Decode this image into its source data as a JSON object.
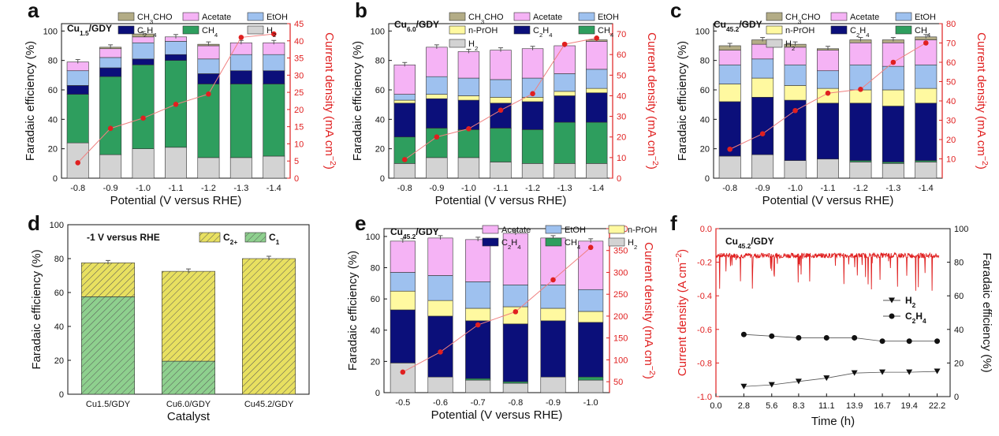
{
  "colors": {
    "H2": "#d3d3d3",
    "CH4": "#2e9e5e",
    "C2H4": "#0b0f7a",
    "EtOH": "#9ec1ef",
    "Acetate": "#f5b3f5",
    "CH3CHO": "#b3ac86",
    "nPrOH": "#fff9a0",
    "current": "#e02020",
    "C2plus": "#e8e060",
    "C1": "#8ed08e"
  },
  "chart_data": [
    {
      "panel": "a",
      "type": "bar",
      "stacked": true,
      "title": "Cu1.5/GDY",
      "xlabel": "Potential (V versus RHE)",
      "ylabel": "Faradaic efficiency (%)",
      "y2label": "Current density (mA cm−2)",
      "ylim": [
        0,
        105
      ],
      "y2lim": [
        0,
        45
      ],
      "yticks": [
        "0",
        "20",
        "40",
        "60",
        "80",
        "100"
      ],
      "y2ticks": [
        "0",
        "5",
        "10",
        "15",
        "20",
        "25",
        "30",
        "35",
        "40",
        "45"
      ],
      "categories": [
        "-0.8",
        "-0.9",
        "-1.0",
        "-1.1",
        "-1.2",
        "-1.3",
        "-1.4"
      ],
      "legend": [
        {
          "key": "CH3CHO",
          "label": "CH3CHO"
        },
        {
          "key": "Acetate",
          "label": "Acetate"
        },
        {
          "key": "EtOH",
          "label": "EtOH"
        },
        {
          "key": "C2H4",
          "label": "C2H4"
        },
        {
          "key": "CH4",
          "label": "CH4"
        },
        {
          "key": "H2",
          "label": "H2"
        }
      ],
      "series": [
        {
          "name": "H2",
          "values": [
            24,
            16,
            20,
            21,
            14,
            14,
            15
          ]
        },
        {
          "name": "CH4",
          "values": [
            33,
            53,
            57,
            59,
            50,
            50,
            49
          ]
        },
        {
          "name": "C2H4",
          "values": [
            6,
            6,
            4,
            4,
            7,
            9,
            9
          ]
        },
        {
          "name": "EtOH",
          "values": [
            10,
            7,
            11,
            9,
            10,
            11,
            11
          ]
        },
        {
          "name": "Acetate",
          "values": [
            6,
            6,
            4,
            3,
            9,
            8,
            8
          ]
        },
        {
          "name": "CH3CHO",
          "values": [
            0,
            1,
            2,
            0,
            1,
            0,
            0
          ]
        }
      ],
      "current_density": [
        4.5,
        14.5,
        17.5,
        21.5,
        24.5,
        41,
        42
      ]
    },
    {
      "panel": "b",
      "type": "bar",
      "stacked": true,
      "title": "Cu6.0/GDY",
      "xlabel": "Potential (V versus RHE)",
      "ylabel": "Faradaic efficiency (%)",
      "y2label": "Current density (mA cm−2)",
      "ylim": [
        0,
        105
      ],
      "y2lim": [
        0,
        75
      ],
      "yticks": [
        "0",
        "20",
        "40",
        "60",
        "80",
        "100"
      ],
      "y2ticks": [
        "0",
        "10",
        "20",
        "30",
        "40",
        "50",
        "60",
        "70"
      ],
      "categories": [
        "-0.8",
        "-0.9",
        "-1.0",
        "-1.1",
        "-1.2",
        "-1.3",
        "-1.4"
      ],
      "legend": [
        {
          "key": "CH3CHO",
          "label": "CH3CHO"
        },
        {
          "key": "Acetate",
          "label": "Acetate"
        },
        {
          "key": "EtOH",
          "label": "EtOH"
        },
        {
          "key": "nPrOH",
          "label": "n-PrOH"
        },
        {
          "key": "C2H4",
          "label": "C2H4"
        },
        {
          "key": "CH4",
          "label": "CH4"
        },
        {
          "key": "H2",
          "label": "H2"
        }
      ],
      "series": [
        {
          "name": "H2",
          "values": [
            10,
            14,
            14,
            11,
            10,
            10,
            10
          ]
        },
        {
          "name": "CH4",
          "values": [
            18,
            20,
            19,
            23,
            23,
            28,
            28
          ]
        },
        {
          "name": "C2H4",
          "values": [
            23,
            20,
            20,
            17,
            19,
            18,
            20
          ]
        },
        {
          "name": "nPrOH",
          "values": [
            2,
            3,
            3,
            4,
            3,
            3,
            3
          ]
        },
        {
          "name": "EtOH",
          "values": [
            4,
            12,
            12,
            12,
            13,
            12,
            13
          ]
        },
        {
          "name": "Acetate",
          "values": [
            20,
            20,
            18,
            20,
            20,
            19,
            19
          ]
        },
        {
          "name": "CH3CHO",
          "values": [
            0,
            0,
            0,
            0,
            0,
            0,
            1
          ]
        }
      ],
      "current_density": [
        9,
        20,
        24,
        33,
        41,
        65,
        68
      ]
    },
    {
      "panel": "c",
      "type": "bar",
      "stacked": true,
      "title": "Cu45.2/GDY",
      "xlabel": "Potential (V versus RHE)",
      "ylabel": "Faradaic efficiency (%)",
      "y2label": "Current density (mA cm−2)",
      "ylim": [
        0,
        105
      ],
      "y2lim": [
        0,
        80
      ],
      "yticks": [
        "0",
        "20",
        "40",
        "60",
        "80",
        "100"
      ],
      "y2ticks": [
        "10",
        "20",
        "30",
        "40",
        "50",
        "60",
        "70",
        "80"
      ],
      "categories": [
        "-0.8",
        "-0.9",
        "-1.0",
        "-1.1",
        "-1.2",
        "-1.3",
        "-1.4"
      ],
      "legend": [
        {
          "key": "CH3CHO",
          "label": "CH3CHO"
        },
        {
          "key": "Acetate",
          "label": "Acetate"
        },
        {
          "key": "EtOH",
          "label": "EtOH"
        },
        {
          "key": "nPrOH",
          "label": "n-PrOH"
        },
        {
          "key": "C2H4",
          "label": "C2H4"
        },
        {
          "key": "CH4",
          "label": "CH4"
        },
        {
          "key": "H2",
          "label": "H2"
        }
      ],
      "series": [
        {
          "name": "H2",
          "values": [
            15,
            16,
            12,
            13,
            11,
            10,
            11
          ]
        },
        {
          "name": "CH4",
          "values": [
            0,
            0,
            0,
            0,
            1,
            1,
            1
          ]
        },
        {
          "name": "C2H4",
          "values": [
            37,
            39,
            41,
            38,
            39,
            38,
            39
          ]
        },
        {
          "name": "nPrOH",
          "values": [
            12,
            13,
            10,
            10,
            9,
            11,
            10
          ]
        },
        {
          "name": "EtOH",
          "values": [
            13,
            13,
            14,
            12,
            17,
            16,
            16
          ]
        },
        {
          "name": "Acetate",
          "values": [
            10,
            10,
            12,
            14,
            15,
            16,
            17
          ]
        },
        {
          "name": "CH3CHO",
          "values": [
            3,
            3,
            2,
            1,
            2,
            2,
            2
          ]
        }
      ],
      "current_density": [
        15,
        23,
        35,
        44,
        46,
        60,
        70
      ]
    },
    {
      "panel": "d",
      "type": "bar",
      "stacked": true,
      "xlabel": "Catalyst",
      "ylabel": "Faradaic efficiency (%)",
      "ylim": [
        0,
        100
      ],
      "yticks": [
        "0",
        "20",
        "40",
        "60",
        "80",
        "100"
      ],
      "annotation": "-1 V versus RHE",
      "categories": [
        "Cu1.5/GDY",
        "Cu6.0/GDY",
        "Cu45.2/GDY"
      ],
      "legend": [
        {
          "key": "C2plus",
          "label": "C2+"
        },
        {
          "key": "C1",
          "label": "C1"
        }
      ],
      "series": [
        {
          "name": "C1",
          "values": [
            57.5,
            19.5,
            0
          ]
        },
        {
          "name": "C2+",
          "values": [
            20,
            53,
            80
          ]
        }
      ]
    },
    {
      "panel": "e",
      "type": "bar",
      "stacked": true,
      "title": "Cu45.2/GDY",
      "xlabel": "Potential (V versus RHE)",
      "ylabel": "Faradaic efficiency (%)",
      "y2label": "Current density (mA cm−2)",
      "ylim": [
        0,
        105
      ],
      "y2lim": [
        25,
        400
      ],
      "yticks": [
        "0",
        "20",
        "40",
        "60",
        "80",
        "100"
      ],
      "y2ticks": [
        "50",
        "100",
        "150",
        "200",
        "250",
        "300",
        "350",
        "400"
      ],
      "categories": [
        "-0.5",
        "-0.6",
        "-0.7",
        "-0.8",
        "-0.9",
        "-1.0"
      ],
      "legend": [
        {
          "key": "Acetate",
          "label": "Acetate"
        },
        {
          "key": "EtOH",
          "label": "EtOH"
        },
        {
          "key": "nPrOH",
          "label": "n-PrOH"
        },
        {
          "key": "C2H4",
          "label": "C2H4"
        },
        {
          "key": "CH4",
          "label": "CH4"
        },
        {
          "key": "H2",
          "label": "H2"
        }
      ],
      "series": [
        {
          "name": "H2",
          "values": [
            19,
            10,
            8,
            6,
            10,
            8
          ]
        },
        {
          "name": "CH4",
          "values": [
            0,
            0,
            1,
            1,
            0,
            2
          ]
        },
        {
          "name": "C2H4",
          "values": [
            34,
            39,
            37,
            37,
            36,
            35
          ]
        },
        {
          "name": "nPrOH",
          "values": [
            12,
            10,
            8,
            11,
            8,
            7
          ]
        },
        {
          "name": "EtOH",
          "values": [
            12,
            16,
            17,
            14,
            15,
            14
          ]
        },
        {
          "name": "Acetate",
          "values": [
            20,
            24,
            27,
            33,
            30,
            31
          ]
        }
      ],
      "current_density": [
        72,
        118,
        180,
        210,
        283,
        357
      ]
    },
    {
      "panel": "f",
      "type": "line",
      "title": "Cu45.2/GDY",
      "xlabel": "Time (h)",
      "ylabel": "Current density (A cm−2)",
      "y2label": "Faradaic efficiency (%)",
      "xlim": [
        0,
        23.5
      ],
      "ylim": [
        -1.0,
        0.0
      ],
      "y2lim": [
        0,
        100
      ],
      "xticks": [
        "0.0",
        "2.8",
        "5.6",
        "8.3",
        "11.1",
        "13.9",
        "16.7",
        "19.4",
        "22.2"
      ],
      "yticks": [
        "-1.0",
        "-0.8",
        "-0.6",
        "-0.4",
        "-0.2",
        "0.0"
      ],
      "y2ticks": [
        "0",
        "20",
        "40",
        "60",
        "80",
        "100"
      ],
      "current_trace": {
        "mean": -0.16,
        "noise": "spiky"
      },
      "series": [
        {
          "name": "H2",
          "marker": "triangle-down",
          "x": [
            2.8,
            5.6,
            8.3,
            11.1,
            13.9,
            16.7,
            19.4,
            22.2
          ],
          "values": [
            6,
            7,
            9,
            11,
            14,
            14.5,
            14.5,
            15
          ]
        },
        {
          "name": "C2H4",
          "marker": "circle",
          "x": [
            2.8,
            5.6,
            8.3,
            11.1,
            13.9,
            16.7,
            19.4,
            22.2
          ],
          "values": [
            37,
            36,
            35,
            35,
            35,
            33,
            33,
            33
          ]
        }
      ],
      "legend": [
        {
          "key": "H2",
          "label": "H2"
        },
        {
          "key": "C2H4",
          "label": "C2H4"
        }
      ]
    }
  ]
}
